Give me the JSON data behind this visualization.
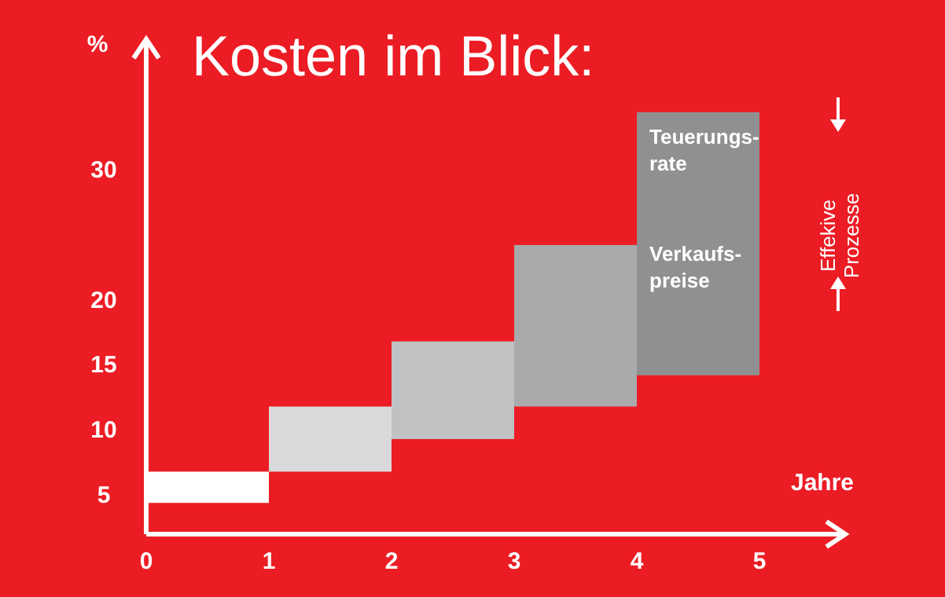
{
  "chart_data": {
    "type": "bar",
    "title": "Kosten im Blick:",
    "ylabel": "%",
    "xlabel": "Jahre",
    "x": [
      0.5,
      1.5,
      2.5,
      3.5,
      4.5
    ],
    "base": [
      4.4,
      6.8,
      9.3,
      11.8,
      14.2
    ],
    "values": [
      2.4,
      5,
      7.5,
      12.4,
      20.2
    ],
    "colors": [
      "#ffffff",
      "#d9d9db",
      "#c0c1c3",
      "#a9aaac",
      "#8f9092"
    ],
    "xlim": [
      0,
      5.7
    ],
    "xticks": [
      0,
      1,
      2,
      3,
      4,
      5
    ],
    "ylim": [
      2,
      40
    ],
    "yticks": [
      5,
      10,
      15,
      20,
      30
    ],
    "annotations": [
      "Teuerungs-\nrate",
      "Verkaufs-\npreise",
      "Effekive\nProzesse"
    ],
    "grid": false
  }
}
